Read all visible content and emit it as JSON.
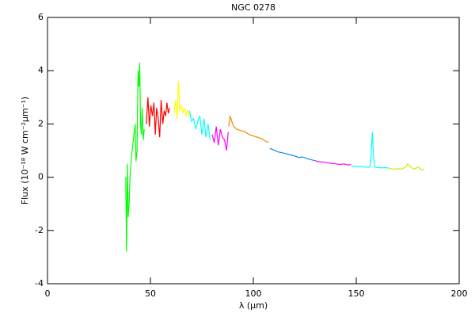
{
  "chart_data": {
    "type": "line",
    "title": "NGC 0278",
    "x_label": "λ (μm)",
    "y_label": "Flux (10⁻¹⁸ W cm⁻²μm⁻¹)",
    "xlim": [
      0,
      200
    ],
    "xticks": [
      0,
      50,
      100,
      150,
      200
    ],
    "ylim": [
      -4,
      6
    ],
    "yticks": [
      -4,
      -2,
      0,
      2,
      4,
      6
    ],
    "series": [
      {
        "color": "#00ff00",
        "x": [
          38,
          38.4,
          38.8,
          39.2,
          39.6,
          40.2,
          41,
          42,
          42.6,
          43,
          43.5,
          44,
          44.4,
          44.8,
          45.2,
          45.6,
          46,
          46.5,
          47
        ],
        "values": [
          0,
          -2.8,
          0.5,
          -1.5,
          -1.1,
          0.2,
          0.9,
          1.6,
          2.0,
          0.6,
          1.0,
          4.0,
          3.4,
          4.3,
          2.0,
          1.6,
          2.6,
          1.4,
          1.8
        ]
      },
      {
        "color": "#ff0000",
        "x": [
          48,
          48.8,
          49.5,
          50.2,
          51,
          51.7,
          52.4,
          53,
          53.8,
          54.5,
          55.2,
          56,
          56.7,
          57.4,
          58,
          58.7,
          59.3
        ],
        "values": [
          2.0,
          3.0,
          1.9,
          2.7,
          2.3,
          2.8,
          1.6,
          2.6,
          2.2,
          1.5,
          2.9,
          2.0,
          2.5,
          2.3,
          2.8,
          2.4,
          2.6
        ]
      },
      {
        "color": "#ffff00",
        "x": [
          61.5,
          62.3,
          63,
          63.6,
          64.3,
          65,
          65.8,
          66.5,
          67.3,
          68,
          68.8
        ],
        "values": [
          2.4,
          2.9,
          2.2,
          3.6,
          2.5,
          2.7,
          2.4,
          2.6,
          2.3,
          2.5,
          2.3
        ]
      },
      {
        "color": "#00ffff",
        "x": [
          69,
          70,
          71,
          72,
          73,
          74,
          75,
          76,
          77,
          78,
          79
        ],
        "values": [
          2.5,
          2.1,
          2.2,
          1.8,
          2.1,
          2.3,
          1.6,
          2.2,
          1.5,
          2.0,
          1.4
        ]
      },
      {
        "color": "#ff00ff",
        "x": [
          80,
          81,
          82,
          83,
          84,
          85,
          86,
          87,
          87.8
        ],
        "values": [
          1.6,
          1.3,
          1.9,
          1.2,
          1.8,
          1.5,
          1.4,
          1.0,
          1.7
        ]
      },
      {
        "color": "#ee8800",
        "x": [
          88,
          88.8,
          89.5,
          90.5,
          92,
          94,
          96,
          98,
          100,
          102,
          104,
          106,
          107.5
        ],
        "values": [
          1.9,
          2.3,
          2.1,
          1.9,
          1.8,
          1.75,
          1.7,
          1.6,
          1.55,
          1.5,
          1.45,
          1.35,
          1.3
        ]
      },
      {
        "color": "#0a8ddc",
        "x": [
          108,
          110,
          112,
          114,
          116,
          118,
          120,
          122,
          124,
          126,
          128,
          130
        ],
        "values": [
          1.08,
          1.02,
          0.95,
          0.92,
          0.88,
          0.84,
          0.8,
          0.74,
          0.76,
          0.7,
          0.66,
          0.62
        ]
      },
      {
        "color": "#ff00ff",
        "x": [
          130,
          132,
          134,
          136,
          138,
          140,
          142,
          144,
          146,
          147.5
        ],
        "values": [
          0.62,
          0.58,
          0.57,
          0.54,
          0.52,
          0.5,
          0.48,
          0.5,
          0.46,
          0.47
        ]
      },
      {
        "color": "#00ffff",
        "x": [
          147.5,
          150,
          152,
          154,
          156,
          157,
          157.8,
          158.4,
          159,
          160,
          162,
          164,
          166
        ],
        "values": [
          0.42,
          0.4,
          0.4,
          0.38,
          0.37,
          0.45,
          1.7,
          0.8,
          0.38,
          0.37,
          0.35,
          0.36,
          0.34
        ]
      },
      {
        "color": "#ccee00",
        "x": [
          166,
          168,
          170,
          172,
          174,
          175,
          176,
          177,
          178,
          180,
          182,
          183
        ],
        "values": [
          0.34,
          0.3,
          0.32,
          0.3,
          0.38,
          0.5,
          0.42,
          0.35,
          0.3,
          0.38,
          0.27,
          0.3
        ]
      }
    ]
  }
}
